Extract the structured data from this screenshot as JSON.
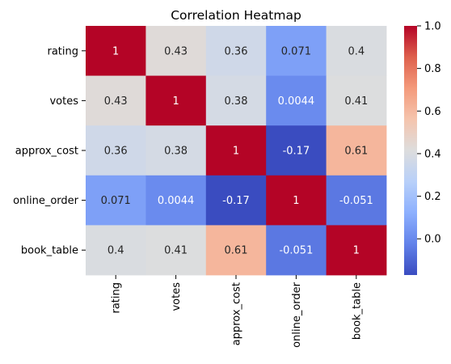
{
  "chart_data": {
    "type": "heatmap",
    "title": "Correlation Heatmap",
    "rows": [
      "rating",
      "votes",
      "approx_cost",
      "online_order",
      "book_table"
    ],
    "columns": [
      "rating",
      "votes",
      "approx_cost",
      "online_order",
      "book_table"
    ],
    "values": [
      [
        1,
        0.43,
        0.36,
        0.071,
        0.4
      ],
      [
        0.43,
        1,
        0.38,
        0.0044,
        0.41
      ],
      [
        0.36,
        0.38,
        1,
        -0.17,
        0.61
      ],
      [
        0.071,
        0.0044,
        -0.17,
        1,
        -0.051
      ],
      [
        0.4,
        0.41,
        0.61,
        -0.051,
        1
      ]
    ],
    "cell_labels": [
      [
        "1",
        "0.43",
        "0.36",
        "0.071",
        "0.4"
      ],
      [
        "0.43",
        "1",
        "0.38",
        "0.0044",
        "0.41"
      ],
      [
        "0.36",
        "0.38",
        "1",
        "-0.17",
        "0.61"
      ],
      [
        "0.071",
        "0.0044",
        "-0.17",
        "1",
        "-0.051"
      ],
      [
        "0.4",
        "0.41",
        "0.61",
        "-0.051",
        "1"
      ]
    ],
    "colormap": "coolwarm",
    "colorbar": {
      "range": [
        -0.17,
        1.0
      ],
      "ticks": [
        0.0,
        0.2,
        0.4,
        0.6,
        0.8,
        1.0
      ],
      "tick_labels": [
        "0.0",
        "0.2",
        "0.4",
        "0.6",
        "0.8",
        "1.0"
      ]
    },
    "grid": false,
    "legend": "colorbar-right"
  }
}
